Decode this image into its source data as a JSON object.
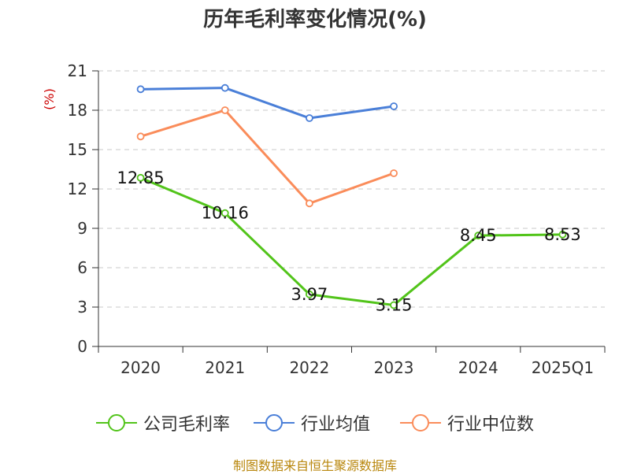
{
  "title": "历年毛利率变化情况(%)",
  "source": "制图数据来自恒生聚源数据库",
  "chart_data": {
    "type": "line",
    "title": "历年毛利率变化情况(%)",
    "ylabel": "(%)",
    "categories": [
      "2020",
      "2021",
      "2022",
      "2023",
      "2024",
      "2025Q1"
    ],
    "ylim": [
      0,
      21
    ],
    "yticks": [
      0,
      3,
      6,
      9,
      12,
      15,
      18,
      21
    ],
    "grid": true,
    "legend_position": "bottom",
    "series": [
      {
        "name": "公司毛利率",
        "color": "#52c41a",
        "values": [
          12.85,
          10.16,
          3.97,
          3.15,
          8.45,
          8.53
        ],
        "labels": [
          "12.85",
          "10.16",
          "3.97",
          "3.15",
          "8.45",
          "8.53"
        ]
      },
      {
        "name": "行业均值",
        "color": "#4a7fd8",
        "values": [
          19.6,
          19.7,
          17.4,
          18.3,
          null,
          null
        ]
      },
      {
        "name": "行业中位数",
        "color": "#fa8c5a",
        "values": [
          16.0,
          18.0,
          10.9,
          13.2,
          null,
          null
        ]
      }
    ]
  }
}
